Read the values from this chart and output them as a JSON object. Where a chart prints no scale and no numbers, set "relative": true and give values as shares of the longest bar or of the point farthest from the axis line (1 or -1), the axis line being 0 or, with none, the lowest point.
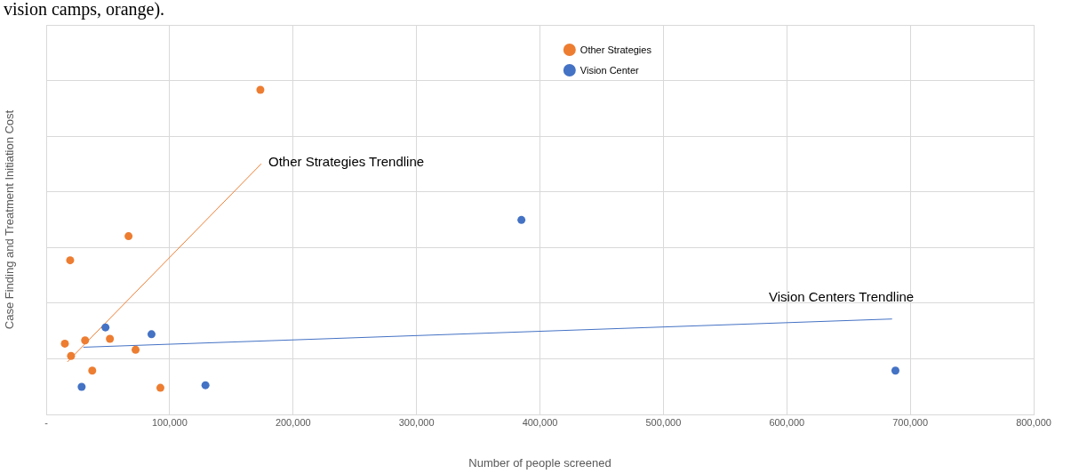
{
  "chart_data": {
    "type": "scatter",
    "relative": true,
    "xlabel": "Number of people screened",
    "ylabel": "Case Finding and Treatment Initiation Cost",
    "xlim": [
      0,
      800000
    ],
    "xticks": [
      {
        "value": 0,
        "label": "-"
      },
      {
        "value": 100000,
        "label": "100,000"
      },
      {
        "value": 200000,
        "label": "200,000"
      },
      {
        "value": 300000,
        "label": "300,000"
      },
      {
        "value": 400000,
        "label": "400,000"
      },
      {
        "value": 500000,
        "label": "500,000"
      },
      {
        "value": 600000,
        "label": "600,000"
      },
      {
        "value": 700000,
        "label": "700,000"
      },
      {
        "value": 800000,
        "label": "800,000"
      }
    ],
    "grid": true,
    "legend": "top",
    "series": [
      {
        "name": "Other Strategies",
        "color": "#ed7d31",
        "marker": "circle",
        "x": [
          173500,
          19400,
          66700,
          15100,
          20100,
          31500,
          51600,
          37300,
          72400,
          92500
        ],
        "values": [
          1.0,
          0.475,
          0.549,
          0.218,
          0.18,
          0.228,
          0.233,
          0.135,
          0.199,
          0.082
        ]
      },
      {
        "name": "Vision Center",
        "color": "#4472c4",
        "marker": "circle",
        "x": [
          385000,
          48000,
          85300,
          28700,
          129000,
          688000
        ],
        "values": [
          0.599,
          0.268,
          0.247,
          0.085,
          0.09,
          0.135
        ]
      },
      {
        "type": "line",
        "color": "#ed7d31",
        "marker": "none",
        "x": [
          17200,
          174200
        ],
        "values": [
          0.162,
          0.772
        ]
      },
      {
        "type": "line",
        "color": "#4472c4",
        "marker": "none",
        "x": [
          30100,
          685300
        ],
        "values": [
          0.207,
          0.294
        ]
      }
    ],
    "annotations": [
      "vision camps, orange).",
      "Other Strategies Trendline",
      "Vision Centers Trendline"
    ]
  }
}
